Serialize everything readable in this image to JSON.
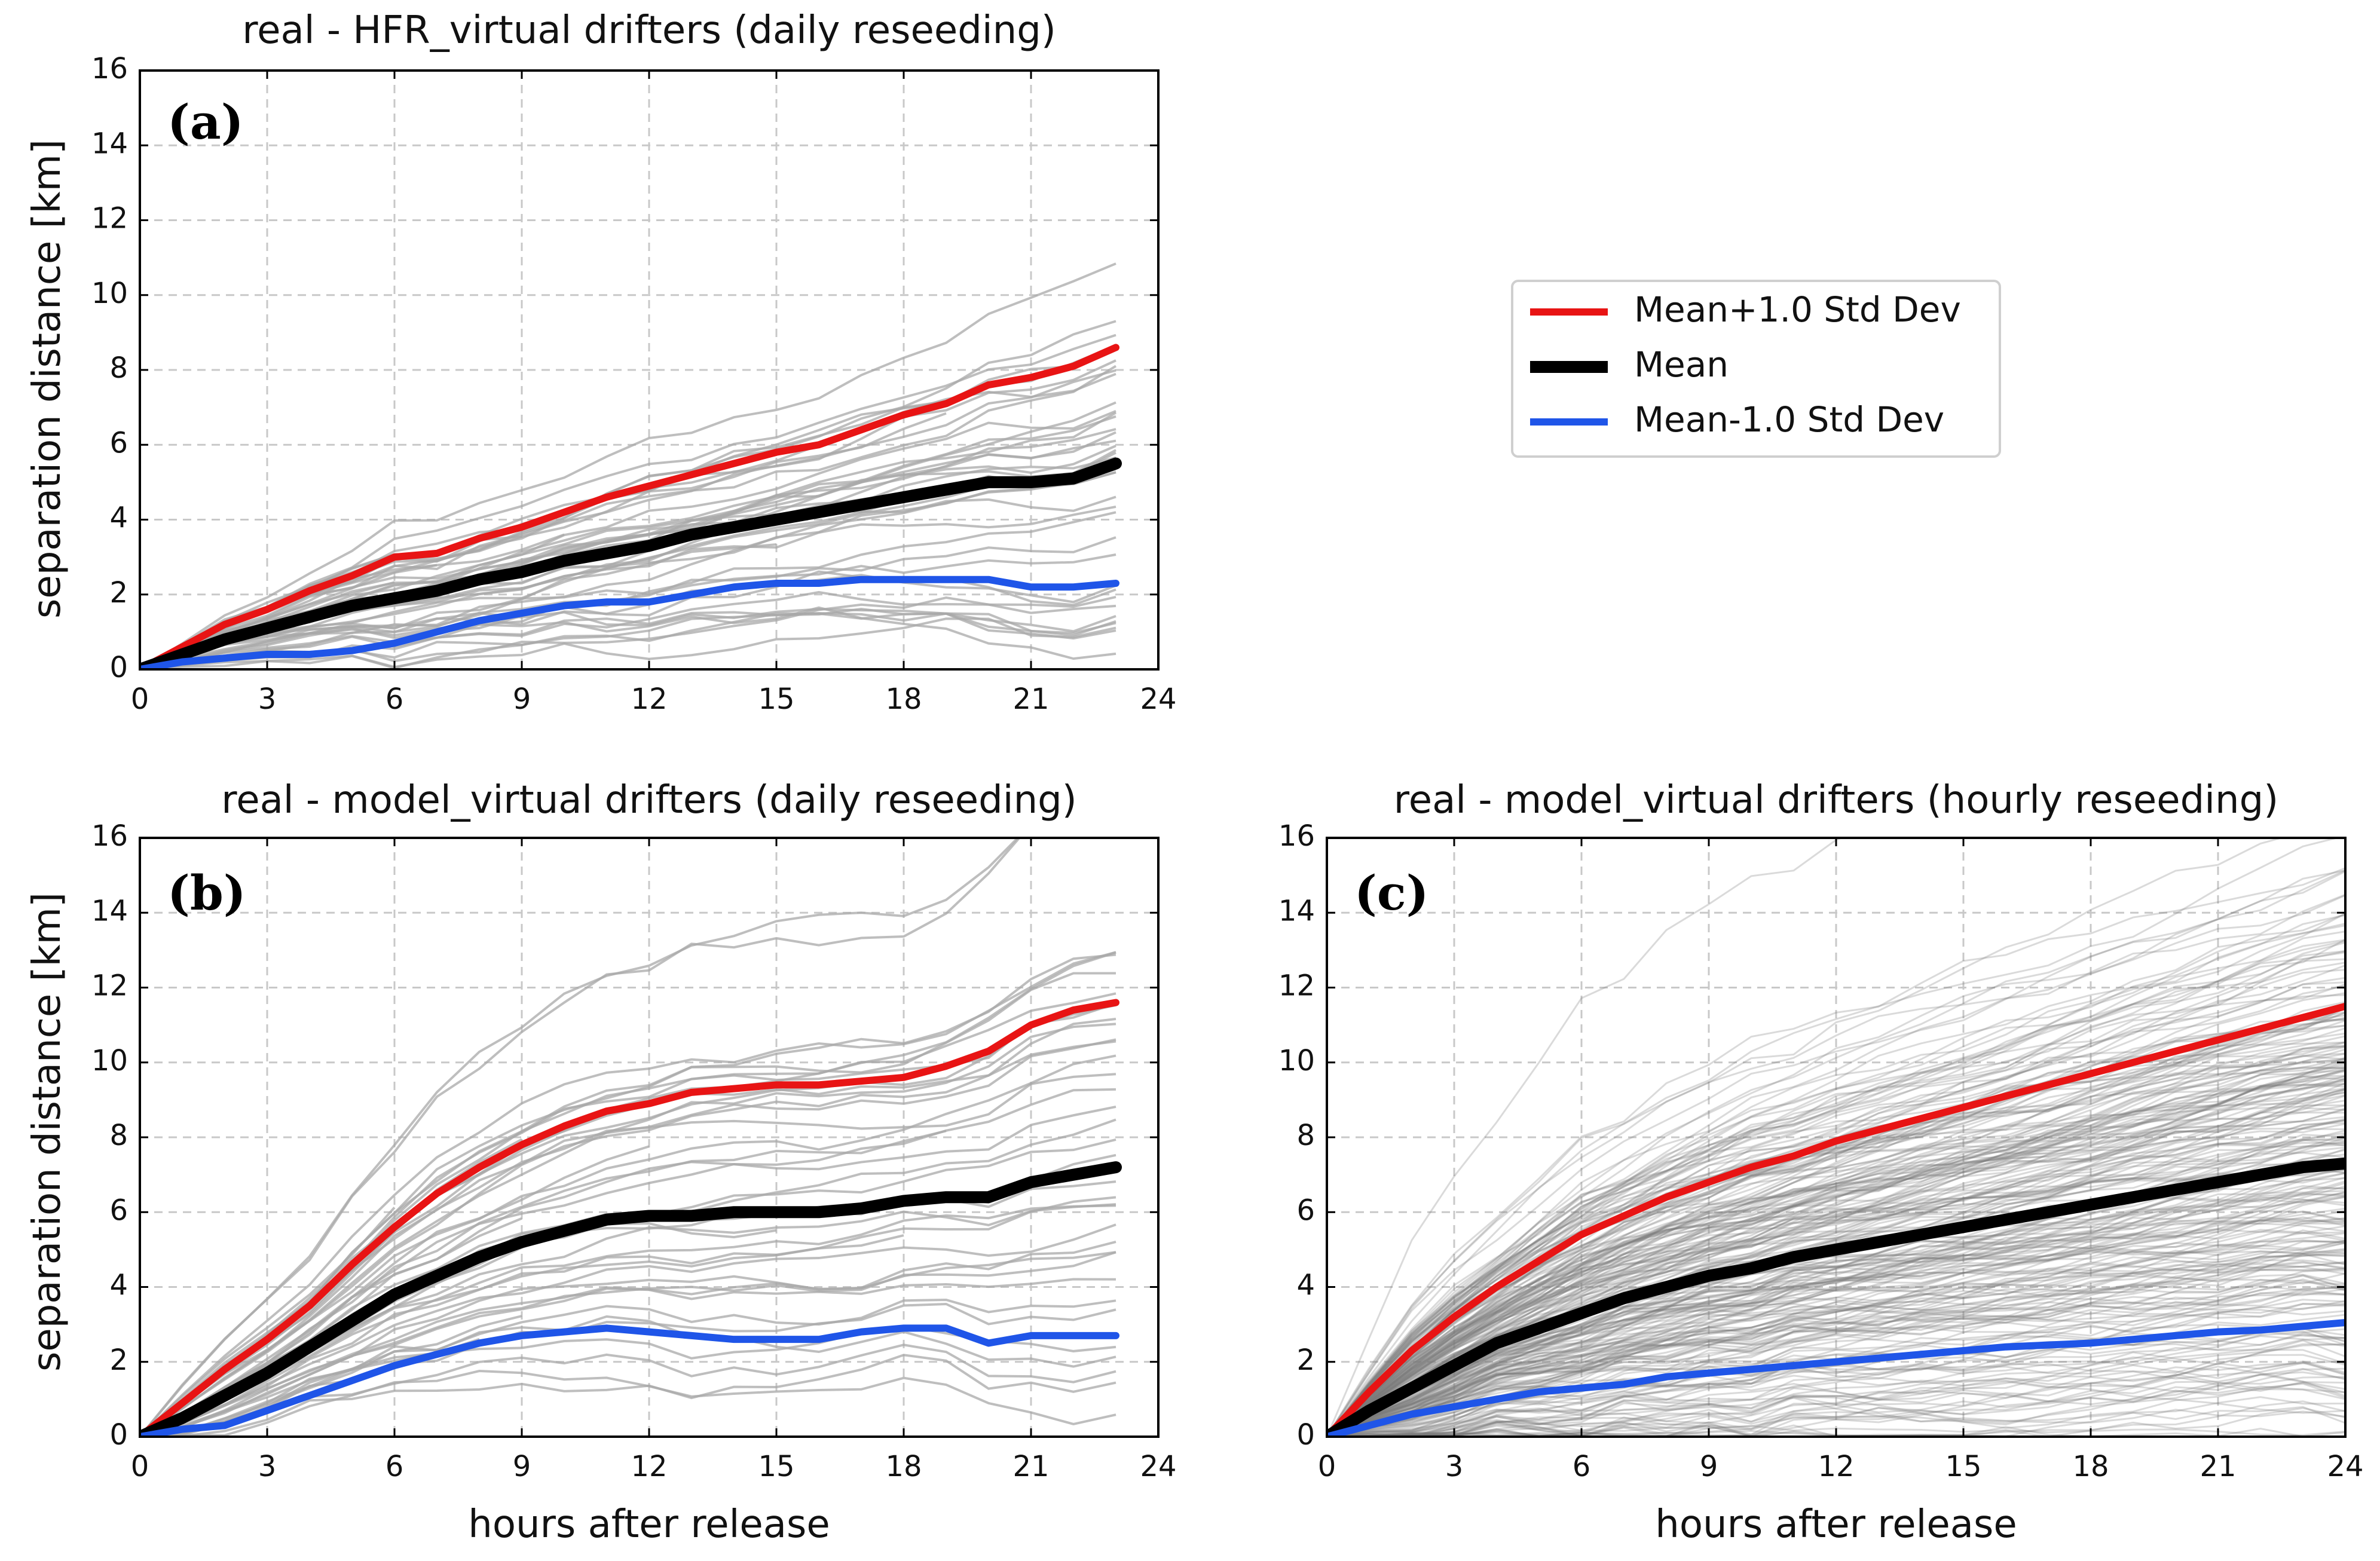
{
  "legend": {
    "entries": [
      {
        "label": "Mean+1.0 Std Dev",
        "color": "#e81414"
      },
      {
        "label": "Mean",
        "color": "#000000"
      },
      {
        "label": "Mean-1.0 Std Dev",
        "color": "#1f55e8"
      }
    ]
  },
  "chart_data": [
    {
      "id": "a",
      "type": "line",
      "panel_label": "(a)",
      "title": "real - HFR_virtual drifters (daily reseeding)",
      "xlabel": "",
      "ylabel": "separation distance [km]",
      "xlim": [
        0,
        24
      ],
      "ylim": [
        0,
        16
      ],
      "xticks": [
        0,
        3,
        6,
        9,
        12,
        15,
        18,
        21,
        24
      ],
      "yticks": [
        0,
        2,
        4,
        6,
        8,
        10,
        12,
        14,
        16
      ],
      "grid": true,
      "background_traces": {
        "count": 45,
        "color": "#a8a8a8",
        "note": "individual drifter pair separations"
      },
      "series": [
        {
          "name": "Mean+1.0 Std Dev",
          "color": "#e81414",
          "x": [
            0,
            1,
            2,
            3,
            4,
            5,
            6,
            7,
            8,
            9,
            10,
            11,
            12,
            13,
            14,
            15,
            16,
            17,
            18,
            19,
            20,
            21,
            22,
            23
          ],
          "values": [
            0,
            0.6,
            1.2,
            1.6,
            2.1,
            2.5,
            3.0,
            3.1,
            3.5,
            3.8,
            4.2,
            4.6,
            4.9,
            5.2,
            5.5,
            5.8,
            6.0,
            6.4,
            6.8,
            7.1,
            7.6,
            7.8,
            8.1,
            8.6
          ]
        },
        {
          "name": "Mean",
          "color": "#000000",
          "x": [
            0,
            1,
            2,
            3,
            4,
            5,
            6,
            7,
            8,
            9,
            10,
            11,
            12,
            13,
            14,
            15,
            16,
            17,
            18,
            19,
            20,
            21,
            22,
            23
          ],
          "values": [
            0,
            0.4,
            0.8,
            1.1,
            1.4,
            1.7,
            1.9,
            2.1,
            2.4,
            2.6,
            2.9,
            3.1,
            3.3,
            3.6,
            3.8,
            4.0,
            4.2,
            4.4,
            4.6,
            4.8,
            5.0,
            5.0,
            5.1,
            5.5
          ]
        },
        {
          "name": "Mean-1.0 Std Dev",
          "color": "#1f55e8",
          "x": [
            0,
            1,
            2,
            3,
            4,
            5,
            6,
            7,
            8,
            9,
            10,
            11,
            12,
            13,
            14,
            15,
            16,
            17,
            18,
            19,
            20,
            21,
            22,
            23
          ],
          "values": [
            0,
            0.2,
            0.3,
            0.4,
            0.4,
            0.5,
            0.7,
            1.0,
            1.3,
            1.5,
            1.7,
            1.8,
            1.8,
            2.0,
            2.2,
            2.3,
            2.3,
            2.4,
            2.4,
            2.4,
            2.4,
            2.2,
            2.2,
            2.3
          ]
        }
      ]
    },
    {
      "id": "b",
      "type": "line",
      "panel_label": "(b)",
      "title": "real - model_virtual drifters (daily reseeding)",
      "xlabel": "hours after release",
      "ylabel": "separation distance [km]",
      "xlim": [
        0,
        24
      ],
      "ylim": [
        0,
        16
      ],
      "xticks": [
        0,
        3,
        6,
        9,
        12,
        15,
        18,
        21,
        24
      ],
      "yticks": [
        0,
        2,
        4,
        6,
        8,
        10,
        12,
        14,
        16
      ],
      "grid": true,
      "background_traces": {
        "count": 45,
        "color": "#a8a8a8",
        "note": "individual drifter pair separations"
      },
      "series": [
        {
          "name": "Mean+1.0 Std Dev",
          "color": "#e81414",
          "x": [
            0,
            1,
            2,
            3,
            4,
            5,
            6,
            7,
            8,
            9,
            10,
            11,
            12,
            13,
            14,
            15,
            16,
            17,
            18,
            19,
            20,
            21,
            22,
            23
          ],
          "values": [
            0,
            0.9,
            1.8,
            2.6,
            3.5,
            4.6,
            5.6,
            6.5,
            7.2,
            7.8,
            8.3,
            8.7,
            8.9,
            9.2,
            9.3,
            9.4,
            9.4,
            9.5,
            9.6,
            9.9,
            10.3,
            11.0,
            11.4,
            11.6
          ]
        },
        {
          "name": "Mean",
          "color": "#000000",
          "x": [
            0,
            1,
            2,
            3,
            4,
            5,
            6,
            7,
            8,
            9,
            10,
            11,
            12,
            13,
            14,
            15,
            16,
            17,
            18,
            19,
            20,
            21,
            22,
            23
          ],
          "values": [
            0,
            0.5,
            1.1,
            1.7,
            2.4,
            3.1,
            3.8,
            4.3,
            4.8,
            5.2,
            5.5,
            5.8,
            5.9,
            5.9,
            6.0,
            6.0,
            6.0,
            6.1,
            6.3,
            6.4,
            6.4,
            6.8,
            7.0,
            7.2
          ]
        },
        {
          "name": "Mean-1.0 Std Dev",
          "color": "#1f55e8",
          "x": [
            0,
            1,
            2,
            3,
            4,
            5,
            6,
            7,
            8,
            9,
            10,
            11,
            12,
            13,
            14,
            15,
            16,
            17,
            18,
            19,
            20,
            21,
            22,
            23
          ],
          "values": [
            0,
            0.2,
            0.3,
            0.7,
            1.1,
            1.5,
            1.9,
            2.2,
            2.5,
            2.7,
            2.8,
            2.9,
            2.8,
            2.7,
            2.6,
            2.6,
            2.6,
            2.8,
            2.9,
            2.9,
            2.5,
            2.7,
            2.7,
            2.7
          ]
        }
      ]
    },
    {
      "id": "c",
      "type": "line",
      "panel_label": "(c)",
      "title": "real - model_virtual drifters (hourly reseeding)",
      "xlabel": "hours after release",
      "ylabel": "",
      "xlim": [
        0,
        24
      ],
      "ylim": [
        0,
        16
      ],
      "xticks": [
        0,
        3,
        6,
        9,
        12,
        15,
        18,
        21,
        24
      ],
      "yticks": [
        0,
        2,
        4,
        6,
        8,
        10,
        12,
        14,
        16
      ],
      "grid": true,
      "background_traces": {
        "count": 260,
        "color": "#7a7a7a",
        "note": "dense individual drifter pair separations"
      },
      "series": [
        {
          "name": "Mean+1.0 Std Dev",
          "color": "#e81414",
          "x": [
            0,
            1,
            2,
            3,
            4,
            5,
            6,
            7,
            8,
            9,
            10,
            11,
            12,
            13,
            14,
            15,
            16,
            17,
            18,
            19,
            20,
            21,
            22,
            23,
            24
          ],
          "values": [
            0,
            1.2,
            2.3,
            3.2,
            4.0,
            4.7,
            5.4,
            5.9,
            6.4,
            6.8,
            7.2,
            7.5,
            7.9,
            8.2,
            8.5,
            8.8,
            9.1,
            9.4,
            9.7,
            10.0,
            10.3,
            10.6,
            10.9,
            11.2,
            11.5
          ]
        },
        {
          "name": "Mean",
          "color": "#000000",
          "x": [
            0,
            1,
            2,
            3,
            4,
            5,
            6,
            7,
            8,
            9,
            10,
            11,
            12,
            13,
            14,
            15,
            16,
            17,
            18,
            19,
            20,
            21,
            22,
            23,
            24
          ],
          "values": [
            0,
            0.7,
            1.3,
            1.9,
            2.5,
            2.9,
            3.3,
            3.7,
            4.0,
            4.3,
            4.5,
            4.8,
            5.0,
            5.2,
            5.4,
            5.6,
            5.8,
            6.0,
            6.2,
            6.4,
            6.6,
            6.8,
            7.0,
            7.2,
            7.3
          ]
        },
        {
          "name": "Mean-1.0 Std Dev",
          "color": "#1f55e8",
          "x": [
            0,
            1,
            2,
            3,
            4,
            5,
            6,
            7,
            8,
            9,
            10,
            11,
            12,
            13,
            14,
            15,
            16,
            17,
            18,
            19,
            20,
            21,
            22,
            23,
            24
          ],
          "values": [
            0,
            0.3,
            0.6,
            0.8,
            1.0,
            1.2,
            1.3,
            1.4,
            1.6,
            1.7,
            1.8,
            1.9,
            2.0,
            2.1,
            2.2,
            2.3,
            2.4,
            2.45,
            2.5,
            2.6,
            2.7,
            2.8,
            2.85,
            2.95,
            3.05
          ]
        }
      ]
    }
  ]
}
